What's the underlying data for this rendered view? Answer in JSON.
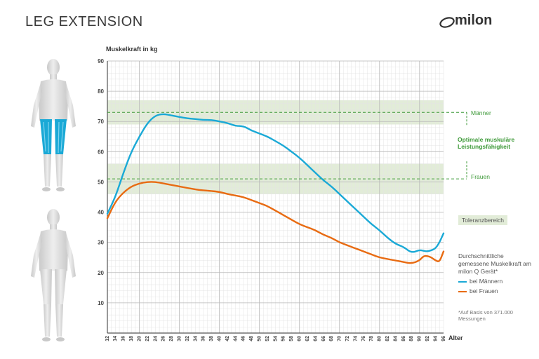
{
  "header": {
    "title": "LEG EXTENSION",
    "logo_text": "milon",
    "logo_mark": "®"
  },
  "figures": {
    "upper": "body-figure-legs-highlighted-icon",
    "lower": "body-figure-icon"
  },
  "colors": {
    "men": "#1aa9d6",
    "women": "#e86b12",
    "optimal_band": "#e2ecd8",
    "optimal_line": "#3f9a3a",
    "grid_minor": "#e4e4e4",
    "grid_major": "#b9b9b9"
  },
  "annotations": {
    "men_optimal_label": "Männer",
    "women_optimal_label": "Frauen",
    "optimal_title": "Optimale muskuläre Leistungsfähigkeit",
    "tolerance_label": "Toleranzbereich",
    "legend_title": "Durchschnittliche gemessene Muskelkraft am milon Q Gerät*",
    "legend_men": "bei Männern",
    "legend_women": "bei Frauen",
    "footnote": "*Auf Basis von 371.000 Messungen"
  },
  "chart_data": {
    "type": "line",
    "ylabel": "Muskelkraft in kg",
    "xlabel": "Alter",
    "xlim": [
      12,
      96
    ],
    "ylim": [
      0,
      90
    ],
    "x_ticks": [
      12,
      14,
      16,
      18,
      20,
      22,
      24,
      26,
      28,
      30,
      32,
      34,
      36,
      38,
      40,
      42,
      44,
      46,
      48,
      50,
      52,
      54,
      56,
      58,
      60,
      62,
      64,
      66,
      68,
      70,
      72,
      74,
      76,
      78,
      80,
      82,
      84,
      86,
      88,
      90,
      92,
      94,
      96
    ],
    "y_ticks": [
      10,
      20,
      30,
      40,
      50,
      60,
      70,
      80,
      90
    ],
    "optimal_bands": [
      {
        "name": "Männer",
        "center": 73,
        "range": [
          69,
          77
        ]
      },
      {
        "name": "Frauen",
        "center": 51,
        "range": [
          46,
          56
        ]
      }
    ],
    "series": [
      {
        "name": "bei Männern",
        "x": [
          12,
          14,
          16,
          18,
          20,
          22,
          24,
          26,
          28,
          30,
          32,
          34,
          36,
          38,
          40,
          42,
          44,
          46,
          48,
          50,
          52,
          54,
          56,
          58,
          60,
          62,
          64,
          66,
          68,
          70,
          72,
          74,
          76,
          78,
          80,
          82,
          84,
          86,
          88,
          90,
          91,
          92,
          93,
          94,
          95,
          96
        ],
        "values": [
          39.5,
          45,
          53,
          60,
          65,
          69.5,
          72,
          72.5,
          72,
          71.5,
          71,
          70.8,
          70.5,
          70.5,
          70,
          69.5,
          68.5,
          68.5,
          67,
          66,
          65,
          63.5,
          62,
          60,
          58,
          55.5,
          53,
          50.5,
          48.5,
          46,
          43.5,
          41,
          38.5,
          36,
          34,
          31.5,
          29.5,
          28.5,
          26.5,
          27.5,
          27.2,
          27,
          27.4,
          28,
          30,
          33
        ]
      },
      {
        "name": "bei Frauen",
        "x": [
          12,
          14,
          16,
          18,
          20,
          22,
          24,
          26,
          28,
          30,
          32,
          34,
          36,
          38,
          40,
          42,
          44,
          46,
          48,
          50,
          52,
          54,
          56,
          58,
          60,
          62,
          64,
          66,
          68,
          70,
          72,
          74,
          76,
          78,
          80,
          82,
          84,
          86,
          88,
          90,
          91,
          92,
          93,
          94,
          95,
          96
        ],
        "values": [
          38,
          43.5,
          46.5,
          48.5,
          49.5,
          50,
          50,
          49.5,
          49,
          48.5,
          48,
          47.5,
          47.2,
          47,
          46.7,
          46,
          45.5,
          45,
          44,
          43,
          42,
          40.5,
          39,
          37.5,
          36,
          35,
          34,
          32.5,
          31.5,
          30,
          29,
          28,
          27,
          26,
          25,
          24.5,
          24,
          23.5,
          23,
          24,
          25.5,
          25.5,
          25,
          24,
          23.5,
          27
        ]
      }
    ]
  }
}
